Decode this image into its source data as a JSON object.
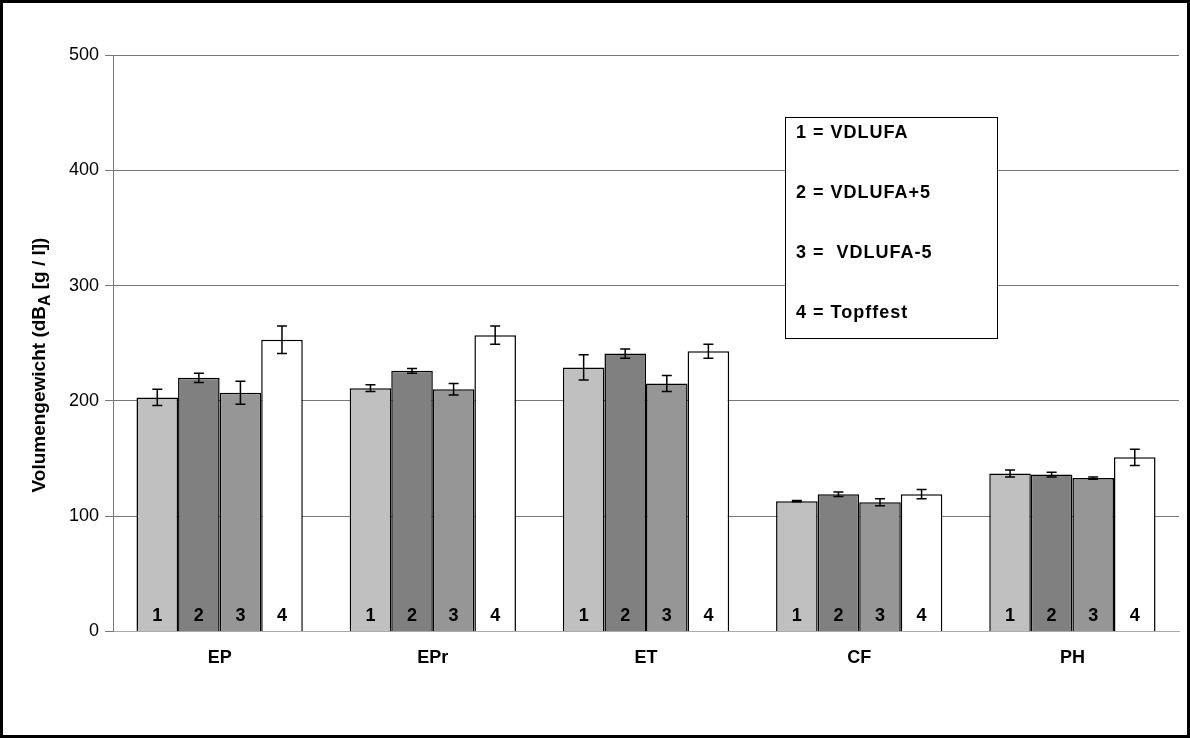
{
  "chart_data": {
    "type": "bar",
    "ylabel": "Volumengewicht (dB$_{A}$ [g / l])",
    "categories": [
      "EP",
      "EPr",
      "ET",
      "CF",
      "PH"
    ],
    "series": [
      {
        "name": "1",
        "color": "#c0c0c0",
        "values": [
          203,
          211,
          229,
          113,
          137
        ],
        "errors": [
          7,
          3,
          11,
          0.5,
          3
        ]
      },
      {
        "name": "2",
        "color": "#808080",
        "values": [
          220,
          226,
          241,
          119,
          136
        ],
        "errors": [
          4,
          2,
          4,
          2,
          2
        ]
      },
      {
        "name": "3",
        "color": "#969696",
        "values": [
          207,
          210,
          215,
          112,
          133
        ],
        "errors": [
          10,
          5,
          7,
          3,
          1
        ]
      },
      {
        "name": "4",
        "color": "#ffffff",
        "values": [
          253,
          257,
          243,
          119,
          151
        ],
        "errors": [
          12,
          8,
          6,
          4,
          7
        ]
      }
    ],
    "ylim": [
      0,
      500
    ],
    "yticks": [
      0,
      100,
      200,
      300,
      400,
      500
    ],
    "grid": "y",
    "legend": false,
    "annotations": [
      "1 = VDLUFA",
      "2 = VDLUFA+5",
      "3 =  VDLUFA-5",
      "4 = Topffest"
    ]
  }
}
